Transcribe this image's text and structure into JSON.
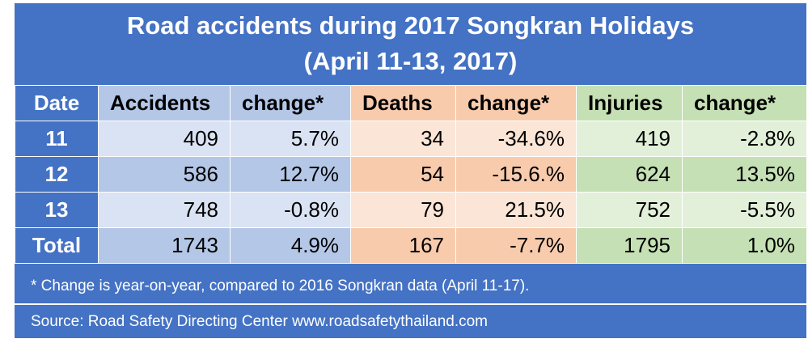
{
  "chart_data": {
    "type": "table",
    "title_line1": "Road accidents during 2017 Songkran Holidays",
    "title_line2": "(April 11-13, 2017)",
    "columns": [
      "Date",
      "Accidents",
      "change*",
      "Deaths",
      "change*",
      "Injuries",
      "change*"
    ],
    "rows": [
      {
        "date": "11",
        "accidents": "409",
        "acc_change": "5.7%",
        "deaths": "34",
        "deaths_change": "-34.6%",
        "injuries": "419",
        "inj_change": "-2.8%"
      },
      {
        "date": "12",
        "accidents": "586",
        "acc_change": "12.7%",
        "deaths": "54",
        "deaths_change": "-15.6.%",
        "injuries": "624",
        "inj_change": "13.5%"
      },
      {
        "date": "13",
        "accidents": "748",
        "acc_change": "-0.8%",
        "deaths": "79",
        "deaths_change": "21.5%",
        "injuries": "752",
        "inj_change": "-5.5%"
      },
      {
        "date": "Total",
        "accidents": "1743",
        "acc_change": "4.9%",
        "deaths": "167",
        "deaths_change": "-7.7%",
        "injuries": "1795",
        "inj_change": "1.0%"
      }
    ],
    "footnote": "* Change is year-on-year, compared to 2016 Songkran data (April 11-17).",
    "source": "Source: Road Safety Directing Center www.roadsafetythailand.com",
    "colors": {
      "frame": "#4472c4",
      "accidents_header": "#b4c7e7",
      "deaths_header": "#f8cbad",
      "injuries_header": "#c5e0b4"
    }
  }
}
